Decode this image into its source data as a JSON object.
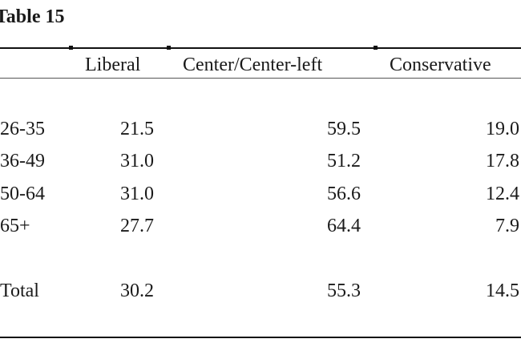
{
  "table": {
    "title": "Table 15",
    "columns": [
      "Liberal",
      "Center/Center-left",
      "Conservative"
    ],
    "rows": [
      {
        "label": "26-35",
        "values": [
          "21.5",
          "59.5",
          "19.0"
        ]
      },
      {
        "label": "36-49",
        "values": [
          "31.0",
          "51.2",
          "17.8"
        ]
      },
      {
        "label": "50-64",
        "values": [
          "31.0",
          "56.6",
          "12.4"
        ]
      },
      {
        "label": "65+",
        "values": [
          "27.7",
          "64.4",
          "7.9"
        ]
      },
      {
        "label": "Total",
        "values": [
          "30.2",
          "55.3",
          "14.5"
        ]
      }
    ]
  }
}
